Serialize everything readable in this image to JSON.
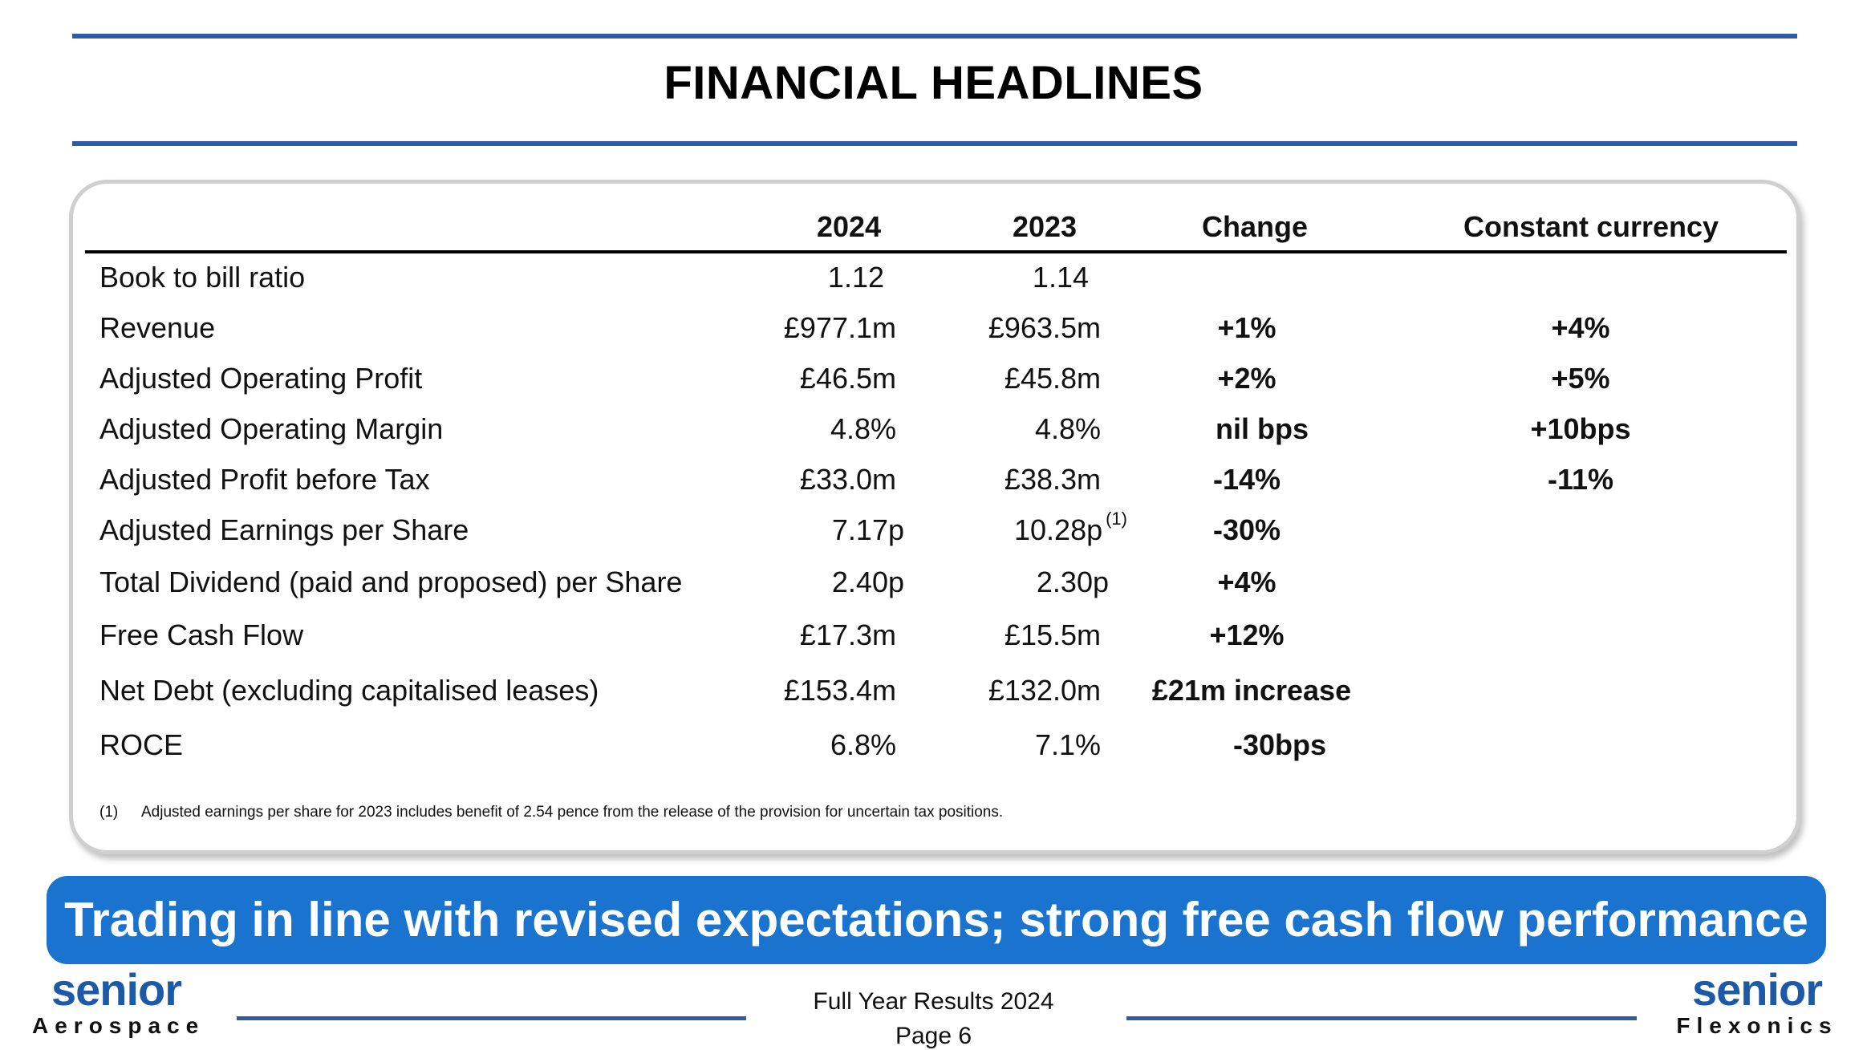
{
  "title": "FINANCIAL HEADLINES",
  "table": {
    "headers": [
      "2024",
      "2023",
      "Change",
      "Constant currency"
    ],
    "rows": [
      {
        "label": "Book to bill ratio",
        "y2024": "1.12",
        "y2023": "1.14",
        "note": "",
        "change": "",
        "constant": ""
      },
      {
        "label": "Revenue",
        "y2024": "£977.1m",
        "y2023": "£963.5m",
        "note": "",
        "change": "+1%",
        "constant": "+4%"
      },
      {
        "label": "Adjusted Operating Profit",
        "y2024": "£46.5m",
        "y2023": "£45.8m",
        "note": "",
        "change": "+2%",
        "constant": "+5%"
      },
      {
        "label": "Adjusted Operating Margin",
        "y2024": "4.8%",
        "y2023": "4.8%",
        "note": "",
        "change": "nil bps",
        "constant": "+10bps"
      },
      {
        "label": "Adjusted Profit before Tax",
        "y2024": "£33.0m",
        "y2023": "£38.3m",
        "note": "",
        "change": "-14%",
        "constant": "-11%"
      },
      {
        "label": "Adjusted Earnings per Share",
        "y2024": "7.17p",
        "y2023": "10.28p",
        "note": "(1)",
        "change": "-30%",
        "constant": ""
      },
      {
        "label": "Total Dividend (paid and proposed) per Share",
        "y2024": "2.40p",
        "y2023": "2.30p",
        "note": "",
        "change": "+4%",
        "constant": ""
      },
      {
        "label": "Free Cash Flow",
        "y2024": "£17.3m",
        "y2023": "£15.5m",
        "note": "",
        "change": "+12%",
        "constant": ""
      },
      {
        "label": "Net Debt (excluding capitalised leases)",
        "y2024": "£153.4m",
        "y2023": "£132.0m",
        "note": "",
        "change": "£21m increase",
        "constant": ""
      },
      {
        "label": "ROCE",
        "y2024": "6.8%",
        "y2023": "7.1%",
        "note": "",
        "change": "-30bps",
        "constant": ""
      }
    ]
  },
  "footnote": {
    "number": "(1)",
    "text": "Adjusted earnings per share for 2023 includes benefit of 2.54 pence from the release of the provision for uncertain tax positions."
  },
  "banner": "Trading in line with revised expectations; strong free cash flow performance",
  "footer": {
    "left_logo": {
      "word": "senior",
      "sub": "Aerospace"
    },
    "right_logo": {
      "word": "senior",
      "sub": "Flexonics"
    },
    "event": "Full Year Results 2024",
    "page": "Page 6"
  },
  "colors": {
    "accent": "#2f5aa8",
    "banner": "#1a73cf",
    "logo": "#1c5aa8"
  }
}
